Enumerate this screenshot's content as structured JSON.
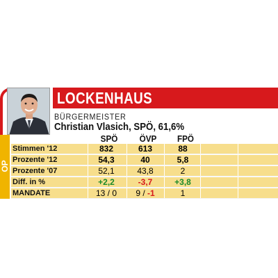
{
  "header": {
    "municipality": "LOCKENHAUS",
    "role": "BÜRGERMEISTER",
    "mayor": "Christian Vlasich, SPÖ, 61,6%",
    "side_tag": "OP"
  },
  "parties": [
    "SPÖ",
    "ÖVP",
    "FPÖ"
  ],
  "rows": [
    {
      "label": "Stimmen '12",
      "values": [
        "832",
        "613",
        "88"
      ]
    },
    {
      "label": "Prozente '12",
      "values": [
        "54,3",
        "40",
        "5,8"
      ]
    },
    {
      "label": "Prozente '07",
      "values": [
        "52,1",
        "43,8",
        "2"
      ]
    },
    {
      "label": "Diff. in %",
      "values": [
        "+2,2",
        "-3,7",
        "+3,8"
      ]
    },
    {
      "label": "MANDATE",
      "values": [
        "13 / 0",
        "9 / ",
        "1"
      ],
      "ovp_delta": "-1"
    }
  ],
  "colors": {
    "red": "#d7191c",
    "yellow": "#f0b400",
    "rowfill": "#f7de8c",
    "green": "#1a8a2a"
  }
}
